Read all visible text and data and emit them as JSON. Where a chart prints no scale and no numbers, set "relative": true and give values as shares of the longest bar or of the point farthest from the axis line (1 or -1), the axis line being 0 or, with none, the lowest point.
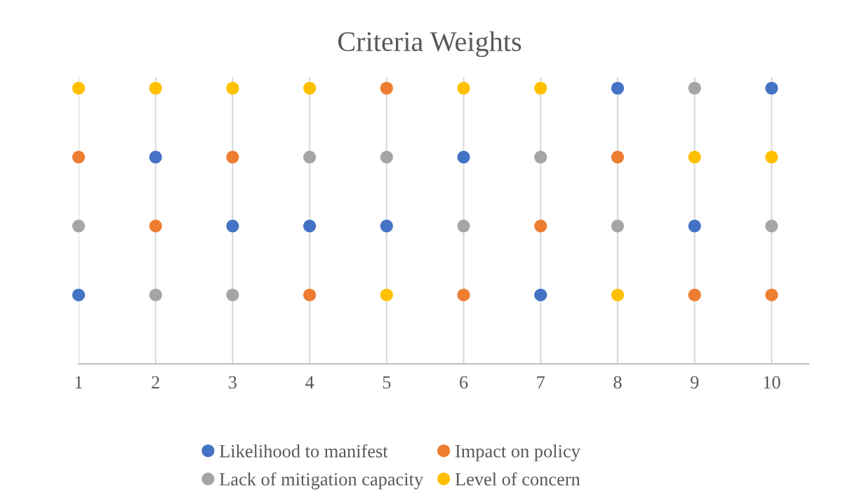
{
  "chart_data": {
    "type": "scatter",
    "title": "Criteria Weights",
    "relative": true,
    "grid": "x",
    "legend": "bottom",
    "marker": "circle",
    "categories": [
      "1",
      "2",
      "3",
      "4",
      "5",
      "6",
      "7",
      "8",
      "9",
      "10"
    ],
    "series": [
      {
        "name": "Likelihood to manifest",
        "color": "#4472c4",
        "values": [
          0.25,
          0.75,
          0.5,
          0.5,
          0.5,
          0.75,
          0.25,
          1,
          0.5,
          1
        ]
      },
      {
        "name": "Impact on policy",
        "color": "#ed7d31",
        "values": [
          0.75,
          0.5,
          0.75,
          0.25,
          1,
          0.25,
          0.5,
          0.75,
          0.25,
          0.25
        ]
      },
      {
        "name": "Lack of mitigation capacity",
        "color": "#a5a5a5",
        "values": [
          0.5,
          0.25,
          0.25,
          0.75,
          0.75,
          0.5,
          0.75,
          0.5,
          1,
          0.5
        ]
      },
      {
        "name": "Level of concern",
        "color": "#ffc000",
        "values": [
          1,
          1,
          1,
          1,
          0.25,
          1,
          1,
          0.25,
          0.75,
          0.75
        ]
      }
    ]
  }
}
